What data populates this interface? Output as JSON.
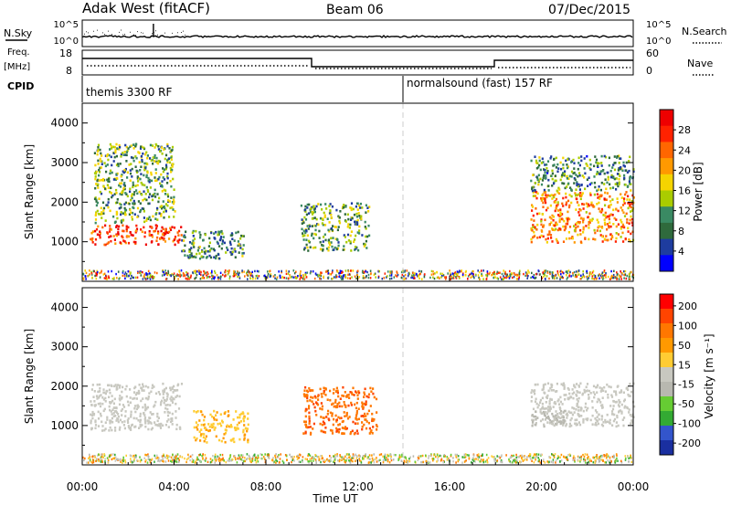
{
  "header": {
    "station": "Adak West (fitACF)",
    "beam": "Beam 06",
    "date": "07/Dec/2015"
  },
  "panels": {
    "nsky": {
      "label": "N.Sky",
      "left_ticks": [
        "10^5",
        "10^0"
      ],
      "right_label": "N.Search",
      "right_ticks": [
        "10^5",
        "10^0"
      ]
    },
    "freq": {
      "label_line1": "Freq.",
      "label_line2": "[MHz]",
      "left_ticks": [
        "18",
        "8"
      ],
      "right_label": "Nave",
      "right_ticks": [
        "60",
        "0"
      ]
    },
    "cpid": {
      "label": "CPID",
      "segments": [
        "themis 3300 RF",
        "normalsound (fast) 157 RF"
      ]
    }
  },
  "colors": {
    "power_scale": [
      "#0000ff",
      "#1e3c9f",
      "#2f6a3c",
      "#3a8a63",
      "#aacc00",
      "#f5d400",
      "#ff9900",
      "#ff6600",
      "#ff2200",
      "#ee0000"
    ],
    "velocity_scale": [
      "#ff0000",
      "#ff4400",
      "#ff7700",
      "#ff9900",
      "#ffcc33",
      "#c8c8c0",
      "#b8b8b0",
      "#66cc33",
      "#33aa33",
      "#3355cc",
      "#1a2fa0"
    ]
  },
  "chart_data": [
    {
      "type": "heatmap",
      "name": "power",
      "ylabel": "Slant Range [km]",
      "yticks": [
        "1000",
        "2000",
        "3000",
        "4000"
      ],
      "ylim": [
        0,
        4500
      ],
      "xlim": [
        0,
        24
      ],
      "colorbar": {
        "label": "Power [dB]",
        "ticks": [
          "4",
          "8",
          "12",
          "16",
          "20",
          "24",
          "28"
        ],
        "range": [
          0,
          32
        ]
      },
      "regions": [
        {
          "x0": 0.3,
          "x1": 4.3,
          "y0": 950,
          "y1": 1450,
          "value": 27
        },
        {
          "x0": 0.5,
          "x1": 4.0,
          "y0": 1500,
          "y1": 3500,
          "value": 12
        },
        {
          "x0": 4.3,
          "x1": 7.0,
          "y0": 600,
          "y1": 1300,
          "value": 10
        },
        {
          "x0": 9.5,
          "x1": 12.5,
          "y0": 800,
          "y1": 2000,
          "value": 12
        },
        {
          "x0": 19.5,
          "x1": 24.0,
          "y0": 1000,
          "y1": 2300,
          "value": 22
        },
        {
          "x0": 19.5,
          "x1": 24.0,
          "y0": 2300,
          "y1": 3200,
          "value": 10
        }
      ]
    },
    {
      "type": "heatmap",
      "name": "velocity",
      "ylabel": "Slant Range [km]",
      "xlabel": "Time UT",
      "xticks": [
        "00:00",
        "04:00",
        "08:00",
        "12:00",
        "16:00",
        "20:00",
        "00:00"
      ],
      "yticks": [
        "1000",
        "2000",
        "3000",
        "4000"
      ],
      "ylim": [
        0,
        4500
      ],
      "xlim": [
        0,
        24
      ],
      "colorbar": {
        "label": "Velocity [m s⁻¹]",
        "ticks": [
          "200",
          "100",
          "50",
          "15",
          "-15",
          "-50",
          "-100",
          "-200"
        ],
        "range": [
          -250,
          250
        ]
      },
      "regions": [
        {
          "x0": 0.3,
          "x1": 4.3,
          "y0": 900,
          "y1": 2100,
          "value": 0
        },
        {
          "x0": 4.8,
          "x1": 7.2,
          "y0": 600,
          "y1": 1400,
          "value": -60
        },
        {
          "x0": 9.6,
          "x1": 12.8,
          "y0": 800,
          "y1": 2000,
          "value": -150
        },
        {
          "x0": 19.5,
          "x1": 24.0,
          "y0": 1000,
          "y1": 2100,
          "value": 0
        },
        {
          "x0": 19.5,
          "x1": 21.0,
          "y0": 1000,
          "y1": 1400,
          "value": 40
        }
      ]
    }
  ]
}
